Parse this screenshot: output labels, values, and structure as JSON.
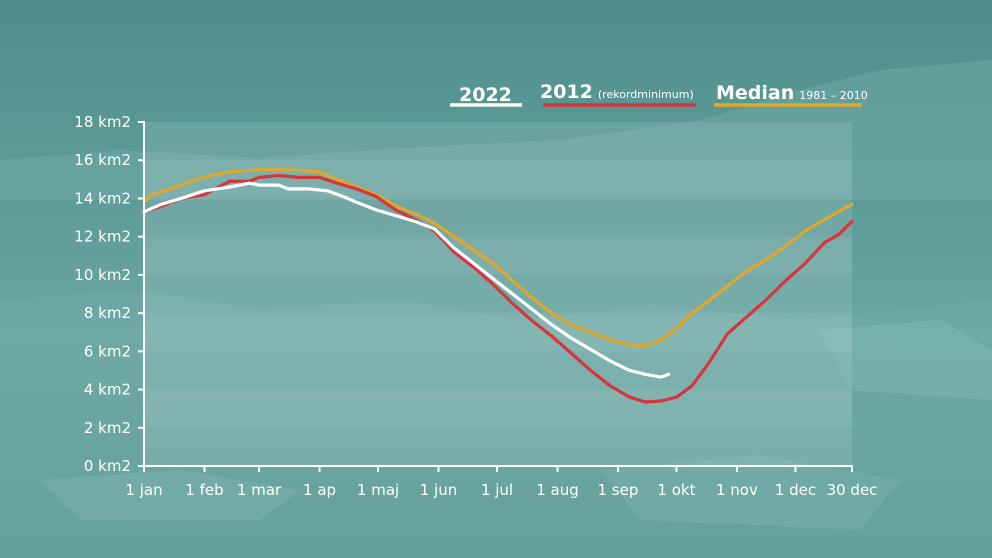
{
  "chart_data": {
    "type": "line",
    "title": "",
    "xlabel": "",
    "ylabel": "",
    "ylim": [
      0,
      18
    ],
    "xlim": [
      1,
      364
    ],
    "grid": false,
    "legend_position": "top-right",
    "y_ticks": [
      {
        "value": 0,
        "label": "0 km2"
      },
      {
        "value": 2,
        "label": "2 km2"
      },
      {
        "value": 4,
        "label": "4 km2"
      },
      {
        "value": 6,
        "label": "6 km2"
      },
      {
        "value": 8,
        "label": "8 km2"
      },
      {
        "value": 10,
        "label": "10 km2"
      },
      {
        "value": 12,
        "label": "12 km2"
      },
      {
        "value": 14,
        "label": "14 km2"
      },
      {
        "value": 16,
        "label": "16 km2"
      },
      {
        "value": 18,
        "label": "18 km2"
      }
    ],
    "x_ticks": [
      {
        "value": 1,
        "label": "1 jan"
      },
      {
        "value": 32,
        "label": "1 feb"
      },
      {
        "value": 60,
        "label": "1 mar"
      },
      {
        "value": 91,
        "label": "1 ap"
      },
      {
        "value": 121,
        "label": "1 maj"
      },
      {
        "value": 152,
        "label": "1 jun"
      },
      {
        "value": 182,
        "label": "1 jul"
      },
      {
        "value": 213,
        "label": "1 aug"
      },
      {
        "value": 244,
        "label": "1 sep"
      },
      {
        "value": 274,
        "label": "1 okt"
      },
      {
        "value": 305,
        "label": "1 nov"
      },
      {
        "value": 335,
        "label": "1 dec"
      },
      {
        "value": 364,
        "label": "30 dec"
      }
    ],
    "series": [
      {
        "name": "2022",
        "subtitle": "",
        "color": "#ffffff",
        "points": [
          [
            1,
            13.3
          ],
          [
            10,
            13.7
          ],
          [
            20,
            14.0
          ],
          [
            32,
            14.4
          ],
          [
            45,
            14.6
          ],
          [
            55,
            14.8
          ],
          [
            60,
            14.7
          ],
          [
            70,
            14.7
          ],
          [
            75,
            14.5
          ],
          [
            85,
            14.5
          ],
          [
            95,
            14.4
          ],
          [
            103,
            14.1
          ],
          [
            110,
            13.8
          ],
          [
            120,
            13.4
          ],
          [
            130,
            13.1
          ],
          [
            140,
            12.8
          ],
          [
            150,
            12.4
          ],
          [
            160,
            11.4
          ],
          [
            170,
            10.6
          ],
          [
            180,
            9.8
          ],
          [
            190,
            9.0
          ],
          [
            200,
            8.2
          ],
          [
            210,
            7.4
          ],
          [
            220,
            6.7
          ],
          [
            230,
            6.1
          ],
          [
            240,
            5.5
          ],
          [
            250,
            5.0
          ],
          [
            258,
            4.8
          ],
          [
            266,
            4.65
          ],
          [
            270,
            4.8
          ]
        ]
      },
      {
        "name": "2012",
        "subtitle": "(rekordminimum)",
        "color": "#d8343e",
        "points": [
          [
            1,
            13.3
          ],
          [
            10,
            13.6
          ],
          [
            20,
            14.0
          ],
          [
            32,
            14.2
          ],
          [
            45,
            14.9
          ],
          [
            55,
            14.9
          ],
          [
            60,
            15.1
          ],
          [
            70,
            15.2
          ],
          [
            80,
            15.1
          ],
          [
            91,
            15.1
          ],
          [
            100,
            14.8
          ],
          [
            110,
            14.5
          ],
          [
            120,
            14.1
          ],
          [
            130,
            13.4
          ],
          [
            140,
            12.9
          ],
          [
            150,
            12.3
          ],
          [
            160,
            11.2
          ],
          [
            170,
            10.4
          ],
          [
            180,
            9.5
          ],
          [
            190,
            8.5
          ],
          [
            200,
            7.6
          ],
          [
            210,
            6.8
          ],
          [
            220,
            5.9
          ],
          [
            230,
            5.0
          ],
          [
            240,
            4.2
          ],
          [
            250,
            3.6
          ],
          [
            258,
            3.35
          ],
          [
            266,
            3.4
          ],
          [
            274,
            3.6
          ],
          [
            282,
            4.2
          ],
          [
            290,
            5.3
          ],
          [
            300,
            6.9
          ],
          [
            310,
            7.8
          ],
          [
            320,
            8.7
          ],
          [
            330,
            9.7
          ],
          [
            340,
            10.6
          ],
          [
            350,
            11.7
          ],
          [
            357,
            12.1
          ],
          [
            364,
            12.8
          ]
        ]
      },
      {
        "name": "Median",
        "subtitle": "1981 – 2010",
        "color": "#e0a72e",
        "points": [
          [
            1,
            13.8
          ],
          [
            5,
            14.2
          ],
          [
            15,
            14.5
          ],
          [
            25,
            14.9
          ],
          [
            35,
            15.2
          ],
          [
            45,
            15.4
          ],
          [
            60,
            15.5
          ],
          [
            75,
            15.5
          ],
          [
            91,
            15.4
          ],
          [
            100,
            15.0
          ],
          [
            110,
            14.6
          ],
          [
            120,
            14.2
          ],
          [
            130,
            13.6
          ],
          [
            140,
            13.2
          ],
          [
            150,
            12.7
          ],
          [
            160,
            12.0
          ],
          [
            170,
            11.3
          ],
          [
            180,
            10.6
          ],
          [
            190,
            9.7
          ],
          [
            200,
            8.8
          ],
          [
            210,
            8.0
          ],
          [
            220,
            7.4
          ],
          [
            230,
            7.0
          ],
          [
            240,
            6.6
          ],
          [
            250,
            6.35
          ],
          [
            258,
            6.3
          ],
          [
            266,
            6.6
          ],
          [
            274,
            7.2
          ],
          [
            282,
            8.0
          ],
          [
            290,
            8.6
          ],
          [
            300,
            9.4
          ],
          [
            310,
            10.2
          ],
          [
            320,
            10.8
          ],
          [
            330,
            11.5
          ],
          [
            340,
            12.3
          ],
          [
            350,
            12.9
          ],
          [
            357,
            13.3
          ],
          [
            364,
            13.7
          ]
        ]
      }
    ]
  }
}
